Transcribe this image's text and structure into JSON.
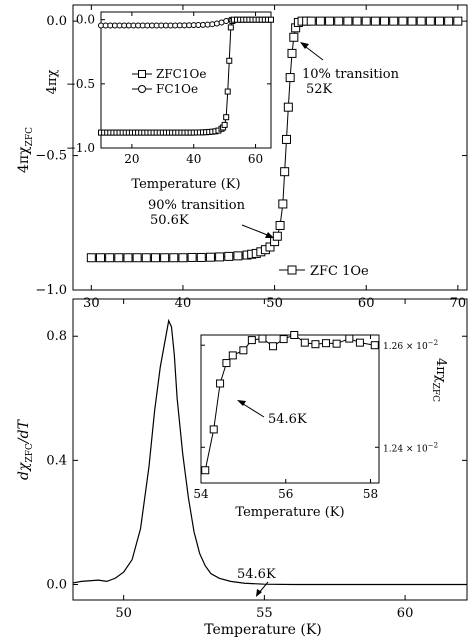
{
  "chart_data": [
    {
      "type": "scatter",
      "panel": "top-main",
      "xlim": [
        28,
        71
      ],
      "ylim": [
        -1.0,
        0.06
      ],
      "xticks": [
        30,
        40,
        50,
        60,
        70
      ],
      "yticks": [
        0.0,
        -0.5,
        -1.0
      ],
      "xtick_labels": [
        "30",
        "40",
        "50",
        "60",
        "70"
      ],
      "ytick_labels": [
        "0.0",
        "−0.5",
        "−1.0"
      ],
      "ylabel": "4πχ",
      "ylabel_sub": "ZFC",
      "legend": "bottom-right",
      "series": [
        {
          "name": "ZFC 1Oe",
          "marker": "square",
          "x": [
            30,
            31,
            32,
            33,
            34,
            35,
            36,
            37,
            38,
            39,
            40,
            41,
            42,
            43,
            44,
            45,
            46,
            47,
            47.5,
            48,
            48.5,
            49,
            49.5,
            50,
            50.3,
            50.6,
            50.9,
            51.1,
            51.3,
            51.5,
            51.7,
            51.9,
            52.1,
            52.3,
            52.6,
            53,
            53.5,
            54,
            55,
            56,
            57,
            58,
            59,
            60,
            61,
            62,
            63,
            64,
            65,
            66,
            67,
            68,
            69,
            70
          ],
          "y": [
            -0.88,
            -0.88,
            -0.88,
            -0.88,
            -0.88,
            -0.88,
            -0.88,
            -0.88,
            -0.88,
            -0.88,
            -0.88,
            -0.879,
            -0.879,
            -0.878,
            -0.877,
            -0.875,
            -0.873,
            -0.87,
            -0.867,
            -0.864,
            -0.858,
            -0.85,
            -0.84,
            -0.82,
            -0.8,
            -0.76,
            -0.68,
            -0.56,
            -0.44,
            -0.32,
            -0.21,
            -0.12,
            -0.06,
            -0.025,
            -0.005,
            0.0,
            0.0,
            0.0,
            0.0,
            0.0,
            0.0,
            0.0,
            0.0,
            0.0,
            0.0,
            0.0,
            0.0,
            0.0,
            0.0,
            0.0,
            0.0,
            0.0,
            0.0,
            0.0
          ]
        }
      ],
      "annotations": [
        {
          "line1": "10% transition",
          "line2": "52K",
          "x": 52.0,
          "y": -0.01
        },
        {
          "line1": "90% transition",
          "line2": "50.6K",
          "x": 50.6,
          "y": -0.78
        }
      ]
    },
    {
      "type": "scatter",
      "panel": "top-inset",
      "xlim": [
        10,
        65
      ],
      "ylim": [
        -1.0,
        0.06
      ],
      "xticks": [
        20,
        40,
        60
      ],
      "yticks": [
        0.0,
        -0.5,
        -1.0
      ],
      "xtick_labels": [
        "20",
        "40",
        "60"
      ],
      "ytick_labels": [
        "0.0",
        "−0.5",
        "−1.0"
      ],
      "xlabel": "Temperature (K)",
      "ylabel": "4πχ",
      "legend": "center-left",
      "series": [
        {
          "name": "ZFC1Oe",
          "marker": "square",
          "x": [
            10,
            11,
            12,
            13,
            14,
            15,
            16,
            17,
            18,
            19,
            20,
            21,
            22,
            23,
            24,
            25,
            26,
            27,
            28,
            29,
            30,
            31,
            32,
            33,
            34,
            35,
            36,
            37,
            38,
            39,
            40,
            41,
            42,
            43,
            44,
            45,
            46,
            47,
            48,
            49,
            49.5,
            50,
            50.5,
            51,
            51.5,
            52,
            52.5,
            53,
            54,
            55,
            56,
            57,
            58,
            59,
            60,
            61,
            62,
            63,
            64,
            65
          ],
          "y": [
            -0.88,
            -0.88,
            -0.88,
            -0.88,
            -0.88,
            -0.88,
            -0.88,
            -0.88,
            -0.88,
            -0.88,
            -0.88,
            -0.88,
            -0.88,
            -0.88,
            -0.88,
            -0.88,
            -0.88,
            -0.88,
            -0.88,
            -0.88,
            -0.88,
            -0.88,
            -0.88,
            -0.88,
            -0.88,
            -0.88,
            -0.88,
            -0.88,
            -0.88,
            -0.88,
            -0.88,
            -0.879,
            -0.879,
            -0.878,
            -0.877,
            -0.875,
            -0.873,
            -0.87,
            -0.864,
            -0.85,
            -0.84,
            -0.82,
            -0.76,
            -0.56,
            -0.32,
            -0.06,
            -0.01,
            0.0,
            0.0,
            0.0,
            0.0,
            0.0,
            0.0,
            0.0,
            0.0,
            0.0,
            0.0,
            0.0,
            0.0,
            0.0
          ]
        },
        {
          "name": "FC1Oe",
          "marker": "circle",
          "x": [
            10,
            11.5,
            13,
            14.5,
            16,
            17.5,
            19,
            20.5,
            22,
            23.5,
            25,
            26.5,
            28,
            29.5,
            31,
            32.5,
            34,
            35.5,
            37,
            38.5,
            40,
            41.5,
            43,
            44.5,
            46,
            47.5,
            49,
            50.5,
            52,
            53.5,
            55,
            56.5,
            58,
            59.5,
            61,
            62.5,
            64
          ],
          "y": [
            -0.045,
            -0.045,
            -0.045,
            -0.045,
            -0.045,
            -0.045,
            -0.045,
            -0.045,
            -0.045,
            -0.045,
            -0.045,
            -0.045,
            -0.045,
            -0.045,
            -0.045,
            -0.045,
            -0.045,
            -0.044,
            -0.044,
            -0.043,
            -0.042,
            -0.041,
            -0.04,
            -0.038,
            -0.035,
            -0.03,
            -0.022,
            -0.01,
            0.0,
            0.0,
            0.0,
            0.0,
            0.0,
            0.0,
            0.0,
            0.0,
            0.0
          ]
        }
      ]
    },
    {
      "type": "line",
      "panel": "bottom-main",
      "xlim": [
        48.2,
        62.2
      ],
      "ylim": [
        -0.05,
        0.92
      ],
      "xticks": [
        50,
        55,
        60
      ],
      "yticks": [
        0.0,
        0.4,
        0.8
      ],
      "xtick_labels": [
        "50",
        "55",
        "60"
      ],
      "ytick_labels": [
        "0.0",
        "0.4",
        "0.8"
      ],
      "xlabel": "Temperature (K)",
      "ylabel": "dχ",
      "ylabel_sub": "ZFC",
      "ylabel_suffix": "/dT",
      "series": [
        {
          "x": [
            48.2,
            48.5,
            48.8,
            49.1,
            49.4,
            49.7,
            50.0,
            50.3,
            50.6,
            50.9,
            51.1,
            51.3,
            51.5,
            51.6,
            51.7,
            51.8,
            51.9,
            52.1,
            52.3,
            52.5,
            52.7,
            52.9,
            53.1,
            53.4,
            53.8,
            54.3,
            55.0,
            56.0,
            58.0,
            60.0,
            62.2
          ],
          "y": [
            0.005,
            0.01,
            0.012,
            0.014,
            0.01,
            0.02,
            0.04,
            0.08,
            0.18,
            0.38,
            0.56,
            0.7,
            0.8,
            0.85,
            0.83,
            0.74,
            0.6,
            0.42,
            0.28,
            0.17,
            0.1,
            0.06,
            0.035,
            0.02,
            0.01,
            0.004,
            0.001,
            0.0,
            0.0,
            0.0,
            0.0
          ]
        }
      ],
      "annotations": [
        {
          "text": "54.6K",
          "x": 54.6,
          "y": 0.0
        }
      ]
    },
    {
      "type": "line",
      "panel": "bottom-inset",
      "xlim": [
        54.0,
        58.2
      ],
      "ylim": [
        0.01233,
        0.01262
      ],
      "xticks": [
        54,
        56,
        58
      ],
      "yticks": [
        0.0126,
        0.0124
      ],
      "xtick_labels": [
        "54",
        "56",
        "58"
      ],
      "ytick_labels": [
        "1.26 × 10",
        "1.24 × 10"
      ],
      "ytick_exponent": "−2",
      "xlabel": "Temperature (K)",
      "ylabel": "4πχ",
      "ylabel_sub": "ZFC",
      "series": [
        {
          "marker": "square",
          "x": [
            54.1,
            54.3,
            54.45,
            54.6,
            54.75,
            55.0,
            55.2,
            55.45,
            55.7,
            55.95,
            56.2,
            56.45,
            56.7,
            56.95,
            57.2,
            57.5,
            57.75,
            58.1
          ],
          "y": [
            0.012355,
            0.012435,
            0.012525,
            0.012565,
            0.01258,
            0.01259,
            0.01261,
            0.012613,
            0.012598,
            0.012612,
            0.012625,
            0.012605,
            0.012602,
            0.012604,
            0.012603,
            0.012613,
            0.012605,
            0.0126
          ]
        }
      ],
      "annotations": [
        {
          "text": "54.6K",
          "x": 54.6,
          "y": 0.012565
        }
      ]
    }
  ]
}
